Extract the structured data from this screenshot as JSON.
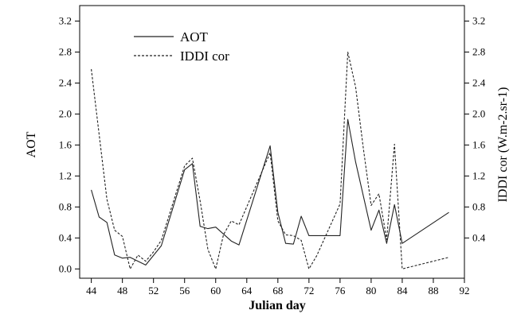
{
  "chart_data": {
    "type": "line",
    "xlabel": "Julian day",
    "ylabel_left": "AOT",
    "ylabel_right": "IDDI cor (W.m-2.sr-1)",
    "x_ticks": [
      44,
      48,
      52,
      56,
      60,
      64,
      68,
      72,
      76,
      80,
      84,
      88,
      92
    ],
    "y_ticks": [
      0.0,
      0.4,
      0.8,
      1.2,
      1.6,
      2.0,
      2.4,
      2.8,
      3.2
    ],
    "y_tick_labels": [
      "0.0",
      "0.4",
      "0.8",
      "1.2",
      "1.6",
      "2.0",
      "2.4",
      "2.8",
      "3.2"
    ],
    "right_tick_labels": [
      "0.4",
      "0.8",
      "1.2",
      "1.6",
      "2.0",
      "2.4",
      "2.8",
      "3.2"
    ],
    "xlim": [
      42.5,
      92
    ],
    "ylim": [
      -0.12,
      3.4
    ],
    "legend_position": "top-left",
    "grid": false,
    "series": [
      {
        "name": "AOT",
        "style": "solid",
        "color": "#222222",
        "x": [
          44,
          45,
          46,
          47,
          48,
          49,
          50,
          51,
          53,
          56,
          57,
          58,
          59,
          60,
          62,
          63,
          67,
          68,
          69,
          70,
          71,
          72,
          73,
          76,
          77,
          78,
          80,
          81,
          82,
          83,
          84,
          90
        ],
        "y": [
          1.02,
          0.67,
          0.6,
          0.18,
          0.14,
          0.15,
          0.1,
          0.05,
          0.3,
          1.28,
          1.36,
          0.55,
          0.52,
          0.54,
          0.36,
          0.31,
          1.59,
          0.73,
          0.33,
          0.32,
          0.68,
          0.43,
          0.43,
          0.43,
          1.93,
          1.38,
          0.5,
          0.76,
          0.33,
          0.83,
          0.33,
          0.73
        ]
      },
      {
        "name": "IDDI cor",
        "style": "dashed",
        "color": "#222222",
        "x": [
          44,
          46,
          47,
          48,
          49,
          50,
          51,
          52,
          53,
          56,
          57,
          58,
          59,
          60,
          61,
          62,
          63,
          67,
          68,
          69,
          70,
          71,
          72,
          73,
          76,
          77,
          78,
          79,
          80,
          81,
          82,
          83,
          84,
          90
        ],
        "y": [
          2.58,
          0.9,
          0.5,
          0.42,
          0.0,
          0.18,
          0.1,
          0.22,
          0.37,
          1.33,
          1.43,
          0.88,
          0.25,
          0.0,
          0.44,
          0.62,
          0.57,
          1.5,
          0.62,
          0.44,
          0.43,
          0.37,
          0.0,
          0.17,
          0.84,
          2.8,
          2.35,
          1.55,
          0.82,
          0.97,
          0.38,
          1.61,
          0.0,
          0.15
        ]
      }
    ]
  }
}
